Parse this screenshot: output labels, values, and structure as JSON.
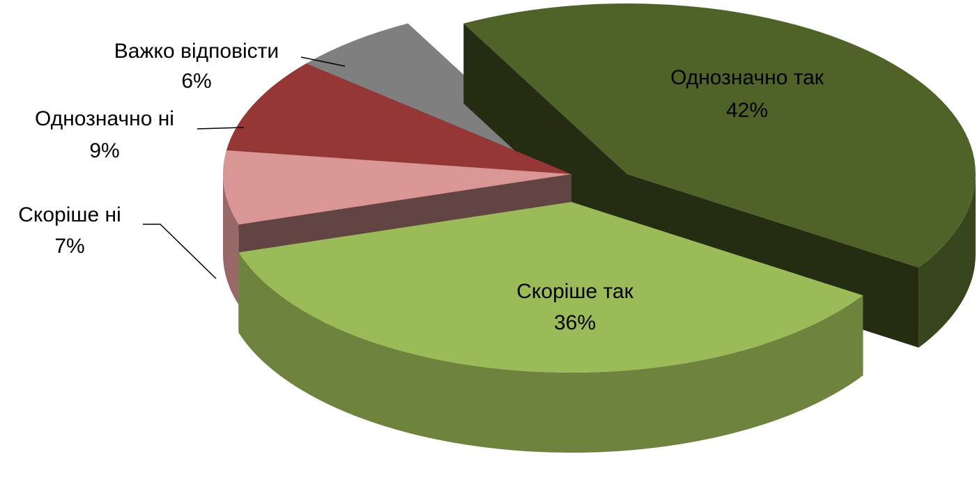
{
  "chart_data": {
    "type": "pie",
    "categories": [
      "Однозначно так",
      "Скоріше так",
      "Скоріше ні",
      "Однозначно ні",
      "Важко відповісти"
    ],
    "values": [
      42,
      36,
      7,
      9,
      6
    ],
    "value_labels": [
      "42%",
      "36%",
      "7%",
      "9%",
      "6%"
    ],
    "colors": [
      "#4f6228",
      "#9bbb59",
      "#d99694",
      "#953735",
      "#7f7f7f"
    ]
  }
}
